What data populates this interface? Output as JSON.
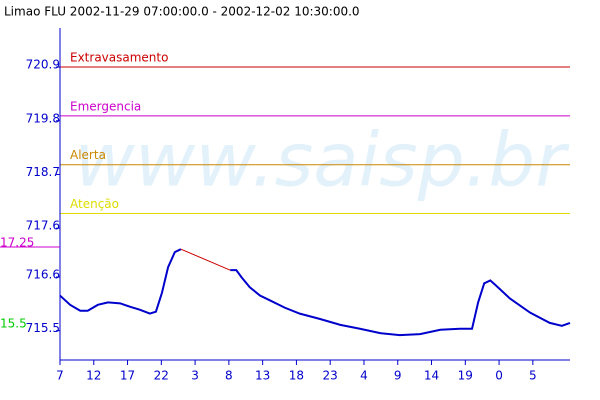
{
  "chart_data": {
    "type": "line",
    "title": "Limao FLU 2002-11-29 07:00:00.0 - 2002-12-02 10:30:00.0",
    "watermark": "www.saisp.br",
    "side_labels": [
      {
        "text": "17.25",
        "color": "#cc00cc"
      },
      {
        "text": "15.5",
        "color": "#00cc00"
      }
    ],
    "thresholds": [
      {
        "label": "Extravasamento",
        "value": 720.9,
        "color": "#cc0000"
      },
      {
        "label": "Emergencia",
        "value": 719.9,
        "color": "#cc00cc"
      },
      {
        "label": "Alerta",
        "value": 718.9,
        "color": "#cc8800"
      },
      {
        "label": "Atenção",
        "value": 717.9,
        "color": "#dddd00"
      }
    ],
    "series": [
      {
        "color": "#0000cc",
        "x": [
          0,
          1.5,
          3,
          4.1,
          5.6,
          7.1,
          8.9,
          10.4,
          11.8,
          13.3,
          14.2,
          15.1,
          16,
          17,
          17.9,
          21.5,
          25.2,
          26.1,
          26.9,
          28.1,
          29.6,
          31.1,
          33.3,
          35.5,
          38.5,
          41.5,
          44.4,
          47.4,
          50.3,
          53.3,
          56.3,
          59.2,
          61,
          61.9,
          62.8,
          63.7,
          64.5,
          66.6,
          69.6,
          72.5,
          74.3,
          75.5
        ],
        "values": [
          716.22,
          716.03,
          715.91,
          715.91,
          716.03,
          716.08,
          716.06,
          715.99,
          715.93,
          715.85,
          715.89,
          716.28,
          716.8,
          717.11,
          717.17,
          null,
          716.74,
          716.74,
          716.59,
          716.39,
          716.22,
          716.12,
          715.97,
          715.85,
          715.74,
          715.62,
          715.54,
          715.45,
          715.41,
          715.43,
          715.52,
          715.54,
          715.54,
          716.08,
          716.47,
          716.53,
          716.43,
          716.16,
          715.87,
          715.66,
          715.6,
          715.66
        ]
      },
      {
        "color": "#cc0000",
        "x": [
          17.9,
          25.2
        ],
        "values": [
          717.17,
          716.74
        ]
      }
    ],
    "xlim": [
      0,
      75.5
    ],
    "xticks": [
      {
        "value": 0,
        "label": "7"
      },
      {
        "value": 5,
        "label": "12"
      },
      {
        "value": 10,
        "label": "17"
      },
      {
        "value": 15,
        "label": "22"
      },
      {
        "value": 20,
        "label": "3"
      },
      {
        "value": 25,
        "label": "8"
      },
      {
        "value": 30,
        "label": "13"
      },
      {
        "value": 35,
        "label": "18"
      },
      {
        "value": 40,
        "label": "23"
      },
      {
        "value": 45,
        "label": "4"
      },
      {
        "value": 50,
        "label": "9"
      },
      {
        "value": 55,
        "label": "14"
      },
      {
        "value": 60,
        "label": "19"
      },
      {
        "value": 65,
        "label": "0"
      },
      {
        "value": 70,
        "label": "5"
      }
    ],
    "ylim": [
      714.9,
      721.7
    ],
    "yticks": [
      720.9,
      719.8,
      718.7,
      717.6,
      716.6,
      715.5
    ]
  }
}
